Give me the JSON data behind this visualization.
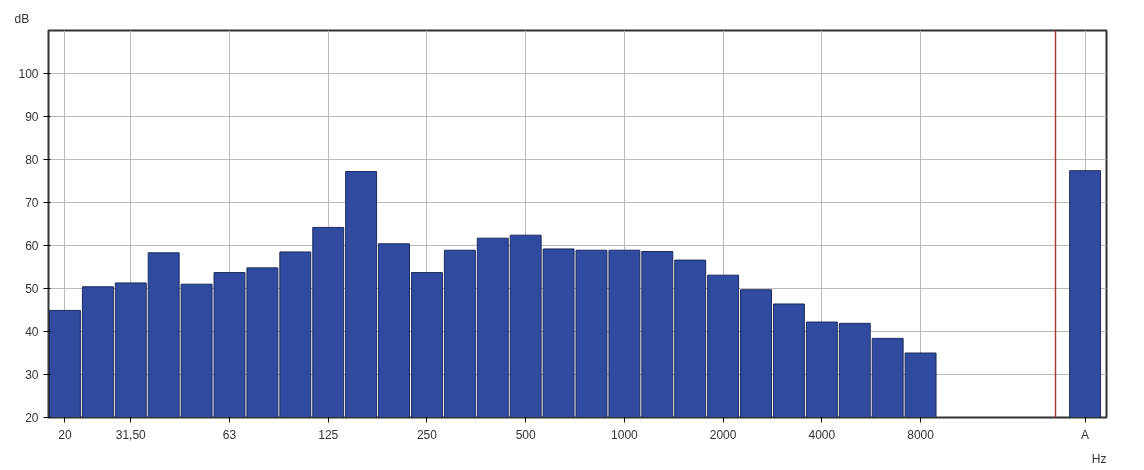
{
  "chart_data": {
    "type": "bar",
    "xlabel": "Hz",
    "ylabel": "dB",
    "categories": [
      "20",
      null,
      "31,50",
      null,
      null,
      "63",
      null,
      null,
      "125",
      null,
      null,
      "250",
      null,
      null,
      "500",
      null,
      null,
      "1000",
      null,
      null,
      "2000",
      null,
      null,
      "4000",
      null,
      null,
      "8000",
      null,
      null,
      null,
      null,
      "A"
    ],
    "values": [
      44.9,
      50.4,
      51.3,
      58.3,
      51.0,
      53.7,
      54.8,
      58.5,
      64.2,
      77.2,
      60.4,
      53.7,
      58.9,
      61.7,
      62.4,
      59.2,
      58.9,
      58.9,
      58.6,
      56.6,
      53.1,
      49.7,
      46.4,
      42.2,
      41.9,
      38.4,
      35.0,
      null,
      null,
      null,
      null,
      77.4
    ],
    "color": "#2f4a9e",
    "ylim": [
      20,
      110
    ],
    "yticks": [
      20,
      30,
      40,
      50,
      60,
      70,
      80,
      90,
      100
    ],
    "grid": true
  }
}
